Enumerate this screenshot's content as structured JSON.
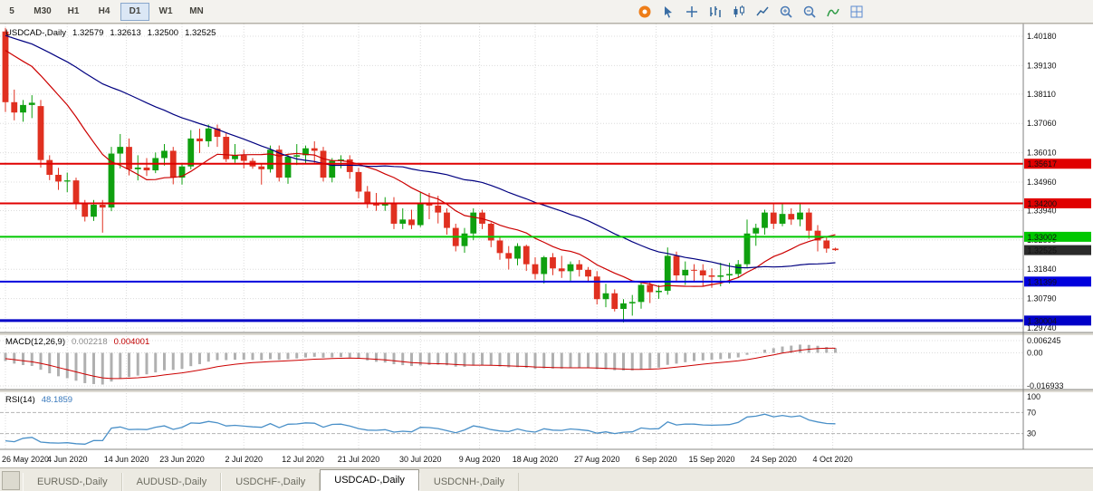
{
  "toolbar": {
    "timeframes": [
      {
        "label": "5",
        "active": false
      },
      {
        "label": "M30",
        "active": false
      },
      {
        "label": "H1",
        "active": false
      },
      {
        "label": "H4",
        "active": false
      },
      {
        "label": "D1",
        "active": true
      },
      {
        "label": "W1",
        "active": false
      },
      {
        "label": "MN",
        "active": false
      }
    ],
    "icons": [
      {
        "name": "community-icon",
        "shape": "circle",
        "color": "#ee7d18"
      },
      {
        "name": "cursor-icon",
        "shape": "cursor",
        "color": "#3a6ea5"
      },
      {
        "name": "crosshair-icon",
        "shape": "cross",
        "color": "#3a6ea5"
      },
      {
        "name": "bar-chart-icon",
        "shape": "bars",
        "color": "#33679c"
      },
      {
        "name": "candlestick-chart-icon",
        "shape": "candle",
        "color": "#33679c"
      },
      {
        "name": "line-chart-icon",
        "shape": "line",
        "color": "#33679c"
      },
      {
        "name": "zoom-in-icon",
        "shape": "zoomin",
        "color": "#4a7ab5"
      },
      {
        "name": "zoom-out-icon",
        "shape": "zoomout",
        "color": "#4a7ab5"
      },
      {
        "name": "indicators-icon",
        "shape": "indicator",
        "color": "#2e9b45"
      },
      {
        "name": "grid-icon",
        "shape": "grid",
        "color": "#5b8bd0"
      }
    ]
  },
  "chart": {
    "symbol_label": "USDCAD-,Daily",
    "ohlc": {
      "open": "1.32579",
      "high": "1.32613",
      "low": "1.32500",
      "close": "1.32525"
    },
    "price_axis_labels": [
      "1.40180",
      "1.39130",
      "1.38110",
      "1.37060",
      "1.36010",
      "1.34960",
      "1.33940",
      "1.32890",
      "1.31840",
      "1.30790",
      "1.29740"
    ],
    "date_labels": [
      {
        "text": "26 May 2020",
        "i": 0
      },
      {
        "text": "4 Jun 2020",
        "i": 7
      },
      {
        "text": "14 Jun 2020",
        "i": 13.7
      },
      {
        "text": "23 Jun 2020",
        "i": 20
      },
      {
        "text": "2 Jul 2020",
        "i": 27
      },
      {
        "text": "12 Jul 2020",
        "i": 33.7
      },
      {
        "text": "21 Jul 2020",
        "i": 40
      },
      {
        "text": "30 Jul 2020",
        "i": 47
      },
      {
        "text": "9 Aug 2020",
        "i": 53.7
      },
      {
        "text": "18 Aug 2020",
        "i": 60
      },
      {
        "text": "27 Aug 2020",
        "i": 67
      },
      {
        "text": "6 Sep 2020",
        "i": 73.7
      },
      {
        "text": "15 Sep 2020",
        "i": 80
      },
      {
        "text": "24 Sep 2020",
        "i": 87
      },
      {
        "text": "4 Oct 2020",
        "i": 93.7
      }
    ],
    "h_lines": [
      {
        "price": 1.35617,
        "label": "1.35617",
        "color": "#e00000",
        "width": 2
      },
      {
        "price": 1.342,
        "label": "1.34200",
        "color": "#e00000",
        "width": 2
      },
      {
        "price": 1.33002,
        "label": "1.33002",
        "color": "#00c800",
        "width": 2
      },
      {
        "price": 1.31399,
        "label": "1.31399",
        "color": "#0000dd",
        "width": 2
      },
      {
        "price": 1.30004,
        "label": "1.30004",
        "color": "#0000c8",
        "width": 3
      }
    ],
    "current_price": {
      "value": 1.32525,
      "label": "1.32525",
      "color": "#2b2b2b"
    },
    "up_color": "#0fa00f",
    "down_color": "#e03020",
    "ma_lines": [
      {
        "period": 13,
        "color": "#cc0000"
      },
      {
        "period": 34,
        "color": "#000080"
      }
    ],
    "candles": [
      [
        1.4035,
        1.4048,
        1.3747,
        1.3782
      ],
      [
        1.3782,
        1.3827,
        1.3717,
        1.3745
      ],
      [
        1.3745,
        1.379,
        1.3712,
        1.3772
      ],
      [
        1.3772,
        1.3807,
        1.3725,
        1.378
      ],
      [
        1.3768,
        1.379,
        1.3548,
        1.3575
      ],
      [
        1.3575,
        1.3592,
        1.3503,
        1.3522
      ],
      [
        1.3522,
        1.3547,
        1.3468,
        1.3498
      ],
      [
        1.3498,
        1.353,
        1.346,
        1.3502
      ],
      [
        1.3502,
        1.3512,
        1.3398,
        1.3422
      ],
      [
        1.3422,
        1.3432,
        1.3355,
        1.3372
      ],
      [
        1.3372,
        1.3432,
        1.3357,
        1.3415
      ],
      [
        1.3415,
        1.3432,
        1.3315,
        1.3405
      ],
      [
        1.3405,
        1.3622,
        1.3392,
        1.3598
      ],
      [
        1.3598,
        1.3668,
        1.3545,
        1.3622
      ],
      [
        1.3622,
        1.3652,
        1.352,
        1.3542
      ],
      [
        1.3542,
        1.3592,
        1.3502,
        1.3548
      ],
      [
        1.3548,
        1.3582,
        1.3518,
        1.3538
      ],
      [
        1.3538,
        1.3602,
        1.3528,
        1.3582
      ],
      [
        1.3582,
        1.3632,
        1.3555,
        1.3608
      ],
      [
        1.3608,
        1.3622,
        1.3488,
        1.3512
      ],
      [
        1.3512,
        1.3562,
        1.3487,
        1.3552
      ],
      [
        1.3552,
        1.3682,
        1.3542,
        1.3652
      ],
      [
        1.3652,
        1.3687,
        1.36,
        1.3642
      ],
      [
        1.3642,
        1.3702,
        1.3622,
        1.3688
      ],
      [
        1.3688,
        1.3702,
        1.3622,
        1.3658
      ],
      [
        1.3658,
        1.3672,
        1.3568,
        1.3578
      ],
      [
        1.3578,
        1.3632,
        1.3565,
        1.3592
      ],
      [
        1.3592,
        1.3612,
        1.3545,
        1.3572
      ],
      [
        1.3572,
        1.3582,
        1.3544,
        1.3552
      ],
      [
        1.3552,
        1.3562,
        1.3487,
        1.3542
      ],
      [
        1.3542,
        1.3627,
        1.353,
        1.3612
      ],
      [
        1.3612,
        1.3627,
        1.3498,
        1.3512
      ],
      [
        1.3512,
        1.3597,
        1.349,
        1.3587
      ],
      [
        1.3587,
        1.3632,
        1.3557,
        1.3592
      ],
      [
        1.3592,
        1.3627,
        1.356,
        1.3617
      ],
      [
        1.3617,
        1.3642,
        1.3563,
        1.3608
      ],
      [
        1.3608,
        1.3622,
        1.3498,
        1.3512
      ],
      [
        1.3512,
        1.3582,
        1.3495,
        1.3572
      ],
      [
        1.3572,
        1.3592,
        1.3545,
        1.3577
      ],
      [
        1.3577,
        1.3592,
        1.3508,
        1.3532
      ],
      [
        1.3532,
        1.3547,
        1.3438,
        1.3462
      ],
      [
        1.3462,
        1.3482,
        1.3403,
        1.3417
      ],
      [
        1.3417,
        1.3457,
        1.3393,
        1.3412
      ],
      [
        1.3412,
        1.3442,
        1.3393,
        1.3422
      ],
      [
        1.3422,
        1.3442,
        1.3328,
        1.3347
      ],
      [
        1.3347,
        1.3402,
        1.3328,
        1.3362
      ],
      [
        1.3362,
        1.3397,
        1.3328,
        1.3342
      ],
      [
        1.3342,
        1.3462,
        1.3335,
        1.3417
      ],
      [
        1.3417,
        1.3457,
        1.3363,
        1.3412
      ],
      [
        1.3412,
        1.3447,
        1.3348,
        1.3387
      ],
      [
        1.3387,
        1.3402,
        1.3308,
        1.3332
      ],
      [
        1.3332,
        1.3347,
        1.3248,
        1.3267
      ],
      [
        1.3267,
        1.3332,
        1.3243,
        1.3312
      ],
      [
        1.3312,
        1.3402,
        1.3288,
        1.3387
      ],
      [
        1.3387,
        1.3397,
        1.3328,
        1.3347
      ],
      [
        1.3347,
        1.3352,
        1.3263,
        1.3287
      ],
      [
        1.3287,
        1.3302,
        1.3218,
        1.3242
      ],
      [
        1.3242,
        1.3267,
        1.3183,
        1.3222
      ],
      [
        1.3222,
        1.3277,
        1.3198,
        1.3267
      ],
      [
        1.3267,
        1.3272,
        1.3178,
        1.3202
      ],
      [
        1.3202,
        1.3227,
        1.3148,
        1.3167
      ],
      [
        1.3167,
        1.3232,
        1.3133,
        1.3227
      ],
      [
        1.3227,
        1.3242,
        1.3163,
        1.3187
      ],
      [
        1.3187,
        1.3232,
        1.3153,
        1.3177
      ],
      [
        1.3177,
        1.3212,
        1.3143,
        1.3202
      ],
      [
        1.3202,
        1.3217,
        1.3158,
        1.3182
      ],
      [
        1.3182,
        1.3192,
        1.3138,
        1.3158
      ],
      [
        1.3158,
        1.3177,
        1.3058,
        1.3077
      ],
      [
        1.3077,
        1.3132,
        1.3048,
        1.3098
      ],
      [
        1.3098,
        1.3112,
        1.3033,
        1.3042
      ],
      [
        1.3042,
        1.3077,
        1.2994,
        1.3062
      ],
      [
        1.3062,
        1.3092,
        1.3018,
        1.3067
      ],
      [
        1.3067,
        1.3137,
        1.3043,
        1.3128
      ],
      [
        1.3128,
        1.3142,
        1.3063,
        1.3102
      ],
      [
        1.3102,
        1.3127,
        1.3078,
        1.3107
      ],
      [
        1.3107,
        1.3262,
        1.3093,
        1.3232
      ],
      [
        1.3232,
        1.3247,
        1.3138,
        1.3162
      ],
      [
        1.3162,
        1.3212,
        1.3128,
        1.3182
      ],
      [
        1.3182,
        1.3202,
        1.3138,
        1.318
      ],
      [
        1.318,
        1.3202,
        1.3123,
        1.3162
      ],
      [
        1.3162,
        1.3187,
        1.3118,
        1.3157
      ],
      [
        1.3157,
        1.3207,
        1.3123,
        1.3162
      ],
      [
        1.3162,
        1.3207,
        1.3133,
        1.3167
      ],
      [
        1.3167,
        1.3217,
        1.3153,
        1.3202
      ],
      [
        1.3202,
        1.3362,
        1.3192,
        1.3312
      ],
      [
        1.3312,
        1.3347,
        1.3268,
        1.3332
      ],
      [
        1.3332,
        1.3397,
        1.3308,
        1.3387
      ],
      [
        1.3387,
        1.3417,
        1.3328,
        1.3347
      ],
      [
        1.3347,
        1.3418,
        1.3338,
        1.3382
      ],
      [
        1.3382,
        1.3402,
        1.3343,
        1.3362
      ],
      [
        1.3362,
        1.342,
        1.3338,
        1.3387
      ],
      [
        1.3387,
        1.3402,
        1.3293,
        1.3322
      ],
      [
        1.3322,
        1.3342,
        1.3248,
        1.3287
      ],
      [
        1.3287,
        1.3302,
        1.3243,
        1.3258
      ],
      [
        1.32579,
        1.32613,
        1.325,
        1.32525
      ]
    ]
  },
  "macd": {
    "label": "MACD(12,26,9)",
    "value": "0.002218",
    "signal_value": "0.004001",
    "fast": 12,
    "slow": 26,
    "signal_period": 9,
    "scale": {
      "max": 0.006245,
      "min": -0.016933,
      "labels": [
        "0.006245",
        "0.00",
        "-0.016933"
      ]
    },
    "histogram_color": "#b0b0b0",
    "signal_color": "#cc0000"
  },
  "rsi": {
    "label": "RSI(14)",
    "value": "48.1859",
    "period": 14,
    "levels": [
      "100",
      "70",
      "30"
    ],
    "line_color": "#4a90c8"
  },
  "tabs": [
    {
      "label": "EURUSD-,Daily",
      "active": false
    },
    {
      "label": "AUDUSD-,Daily",
      "active": false
    },
    {
      "label": "USDCHF-,Daily",
      "active": false
    },
    {
      "label": "USDCAD-,Daily",
      "active": true
    },
    {
      "label": "USDCNH-,Daily",
      "active": false
    }
  ]
}
